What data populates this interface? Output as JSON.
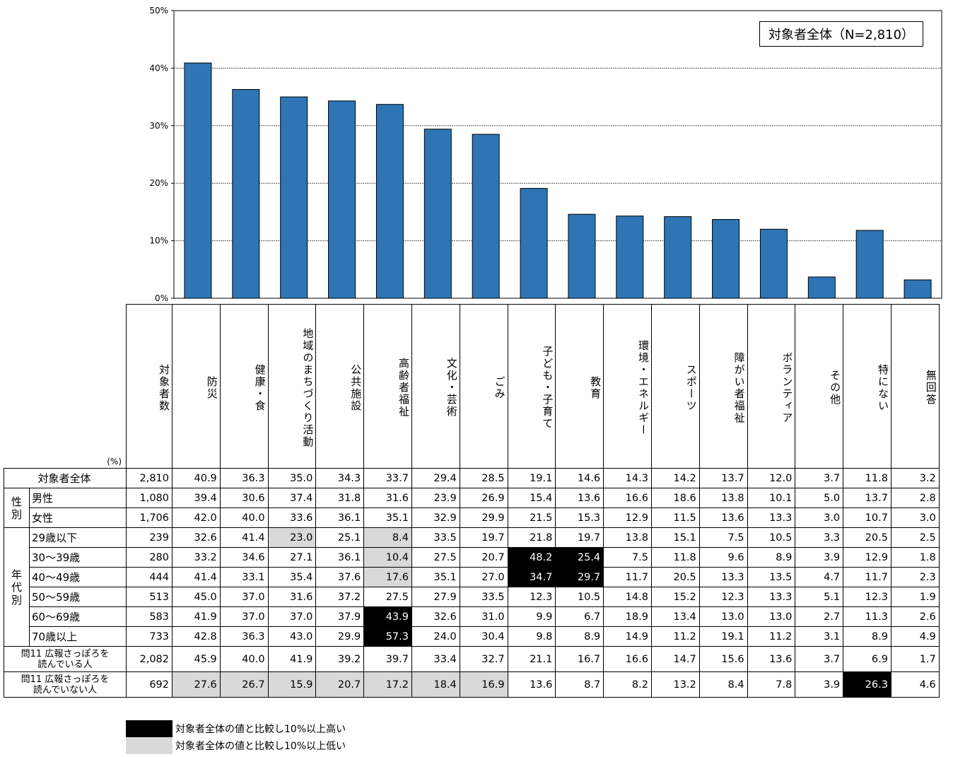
{
  "chart_data": {
    "type": "bar",
    "legend_label": "対象者全体（N=2,810）",
    "y_ticks": [
      "0%",
      "10%",
      "20%",
      "30%",
      "40%",
      "50%"
    ],
    "ylim": [
      0,
      50
    ],
    "grid": true,
    "bar_color": "#2e75b6",
    "categories": [
      "防災",
      "健康・食",
      "地域のまちづくり活動",
      "公共施設",
      "高齢者福祉",
      "文化・芸術",
      "ごみ",
      "子ども・子育て",
      "教育",
      "環境・エネルギー",
      "スポーツ",
      "障がい者福祉",
      "ボランティア",
      "その他",
      "特にない",
      "無回答"
    ],
    "values": [
      40.9,
      36.3,
      35.0,
      34.3,
      33.7,
      29.4,
      28.5,
      19.1,
      14.6,
      14.3,
      14.2,
      13.7,
      12.0,
      3.7,
      11.8,
      3.2
    ]
  },
  "table": {
    "unit": "(%)",
    "count_header": "対象者数",
    "headers": [
      "防災",
      "健康・食",
      "地域のまちづくり活動",
      "公共施設",
      "高齢者福祉",
      "文化・芸術",
      "ごみ",
      "子ども・子育て",
      "教育",
      "環境・エネルギー",
      "スポーツ",
      "障がい者福祉",
      "ボランティア",
      "その他",
      "特にない",
      "無回答"
    ],
    "total_row": {
      "label": "対象者全体",
      "n": "2,810",
      "values": [
        "40.9",
        "36.3",
        "35.0",
        "34.3",
        "33.7",
        "29.4",
        "28.5",
        "19.1",
        "14.6",
        "14.3",
        "14.2",
        "13.7",
        "12.0",
        "3.7",
        "11.8",
        "3.2"
      ]
    },
    "groups": [
      {
        "label": "性別",
        "rows": [
          {
            "label": "男性",
            "n": "1,080",
            "values": [
              "39.4",
              "30.6",
              "37.4",
              "31.8",
              "31.6",
              "23.9",
              "26.9",
              "15.4",
              "13.6",
              "16.6",
              "18.6",
              "13.8",
              "10.1",
              "5.0",
              "13.7",
              "2.8"
            ],
            "marks": {}
          },
          {
            "label": "女性",
            "n": "1,706",
            "values": [
              "42.0",
              "40.0",
              "33.6",
              "36.1",
              "35.1",
              "32.9",
              "29.9",
              "21.5",
              "15.3",
              "12.9",
              "11.5",
              "13.6",
              "13.3",
              "3.0",
              "10.7",
              "3.0"
            ],
            "marks": {}
          }
        ]
      },
      {
        "label": "年代別",
        "rows": [
          {
            "label": "29歳以下",
            "n": "239",
            "values": [
              "32.6",
              "41.4",
              "23.0",
              "25.1",
              "8.4",
              "33.5",
              "19.7",
              "21.8",
              "19.7",
              "13.8",
              "15.1",
              "7.5",
              "10.5",
              "3.3",
              "20.5",
              "2.5"
            ],
            "marks": {
              "2": "lo",
              "4": "lo"
            }
          },
          {
            "label": "30～39歳",
            "n": "280",
            "values": [
              "33.2",
              "34.6",
              "27.1",
              "36.1",
              "10.4",
              "27.5",
              "20.7",
              "48.2",
              "25.4",
              "7.5",
              "11.8",
              "9.6",
              "8.9",
              "3.9",
              "12.9",
              "1.8"
            ],
            "marks": {
              "4": "lo",
              "7": "hi",
              "8": "hi"
            }
          },
          {
            "label": "40～49歳",
            "n": "444",
            "values": [
              "41.4",
              "33.1",
              "35.4",
              "37.6",
              "17.6",
              "35.1",
              "27.0",
              "34.7",
              "29.7",
              "11.7",
              "20.5",
              "13.3",
              "13.5",
              "4.7",
              "11.7",
              "2.3"
            ],
            "marks": {
              "4": "lo",
              "7": "hi",
              "8": "hi"
            }
          },
          {
            "label": "50～59歳",
            "n": "513",
            "values": [
              "45.0",
              "37.0",
              "31.6",
              "37.2",
              "27.5",
              "27.9",
              "33.5",
              "12.3",
              "10.5",
              "14.8",
              "15.2",
              "12.3",
              "13.3",
              "5.1",
              "12.3",
              "1.9"
            ],
            "marks": {}
          },
          {
            "label": "60～69歳",
            "n": "583",
            "values": [
              "41.9",
              "37.0",
              "37.0",
              "37.9",
              "43.9",
              "32.6",
              "31.0",
              "9.9",
              "6.7",
              "18.9",
              "13.4",
              "13.0",
              "13.0",
              "2.7",
              "11.3",
              "2.6"
            ],
            "marks": {
              "4": "hi"
            }
          },
          {
            "label": "70歳以上",
            "n": "733",
            "values": [
              "42.8",
              "36.3",
              "43.0",
              "29.9",
              "57.3",
              "24.0",
              "30.4",
              "9.8",
              "8.9",
              "14.9",
              "11.2",
              "19.1",
              "11.2",
              "3.1",
              "8.9",
              "4.9"
            ],
            "marks": {
              "4": "hi"
            }
          }
        ]
      }
    ],
    "q11_rows": [
      {
        "label": "問11 広報さっぽろを 読んでいる人",
        "n": "2,082",
        "values": [
          "45.9",
          "40.0",
          "41.9",
          "39.2",
          "39.7",
          "33.4",
          "32.7",
          "21.1",
          "16.7",
          "16.6",
          "14.7",
          "15.6",
          "13.6",
          "3.7",
          "6.9",
          "1.7"
        ],
        "marks": {}
      },
      {
        "label": "問11 広報さっぽろを 読んでいない人",
        "n": "692",
        "values": [
          "27.6",
          "26.7",
          "15.9",
          "20.7",
          "17.2",
          "18.4",
          "16.9",
          "13.6",
          "8.7",
          "8.2",
          "13.2",
          "8.4",
          "7.8",
          "3.9",
          "26.3",
          "4.6"
        ],
        "marks": {
          "0": "lo",
          "1": "lo",
          "2": "lo",
          "3": "lo",
          "4": "lo",
          "5": "lo",
          "6": "lo",
          "14": "hi"
        }
      }
    ]
  },
  "keys": {
    "high": "対象者全体の値と比較し10%以上高い",
    "low": "対象者全体の値と比較し10%以上低い",
    "high_color": "#000000",
    "low_color": "#d9d9d9"
  }
}
